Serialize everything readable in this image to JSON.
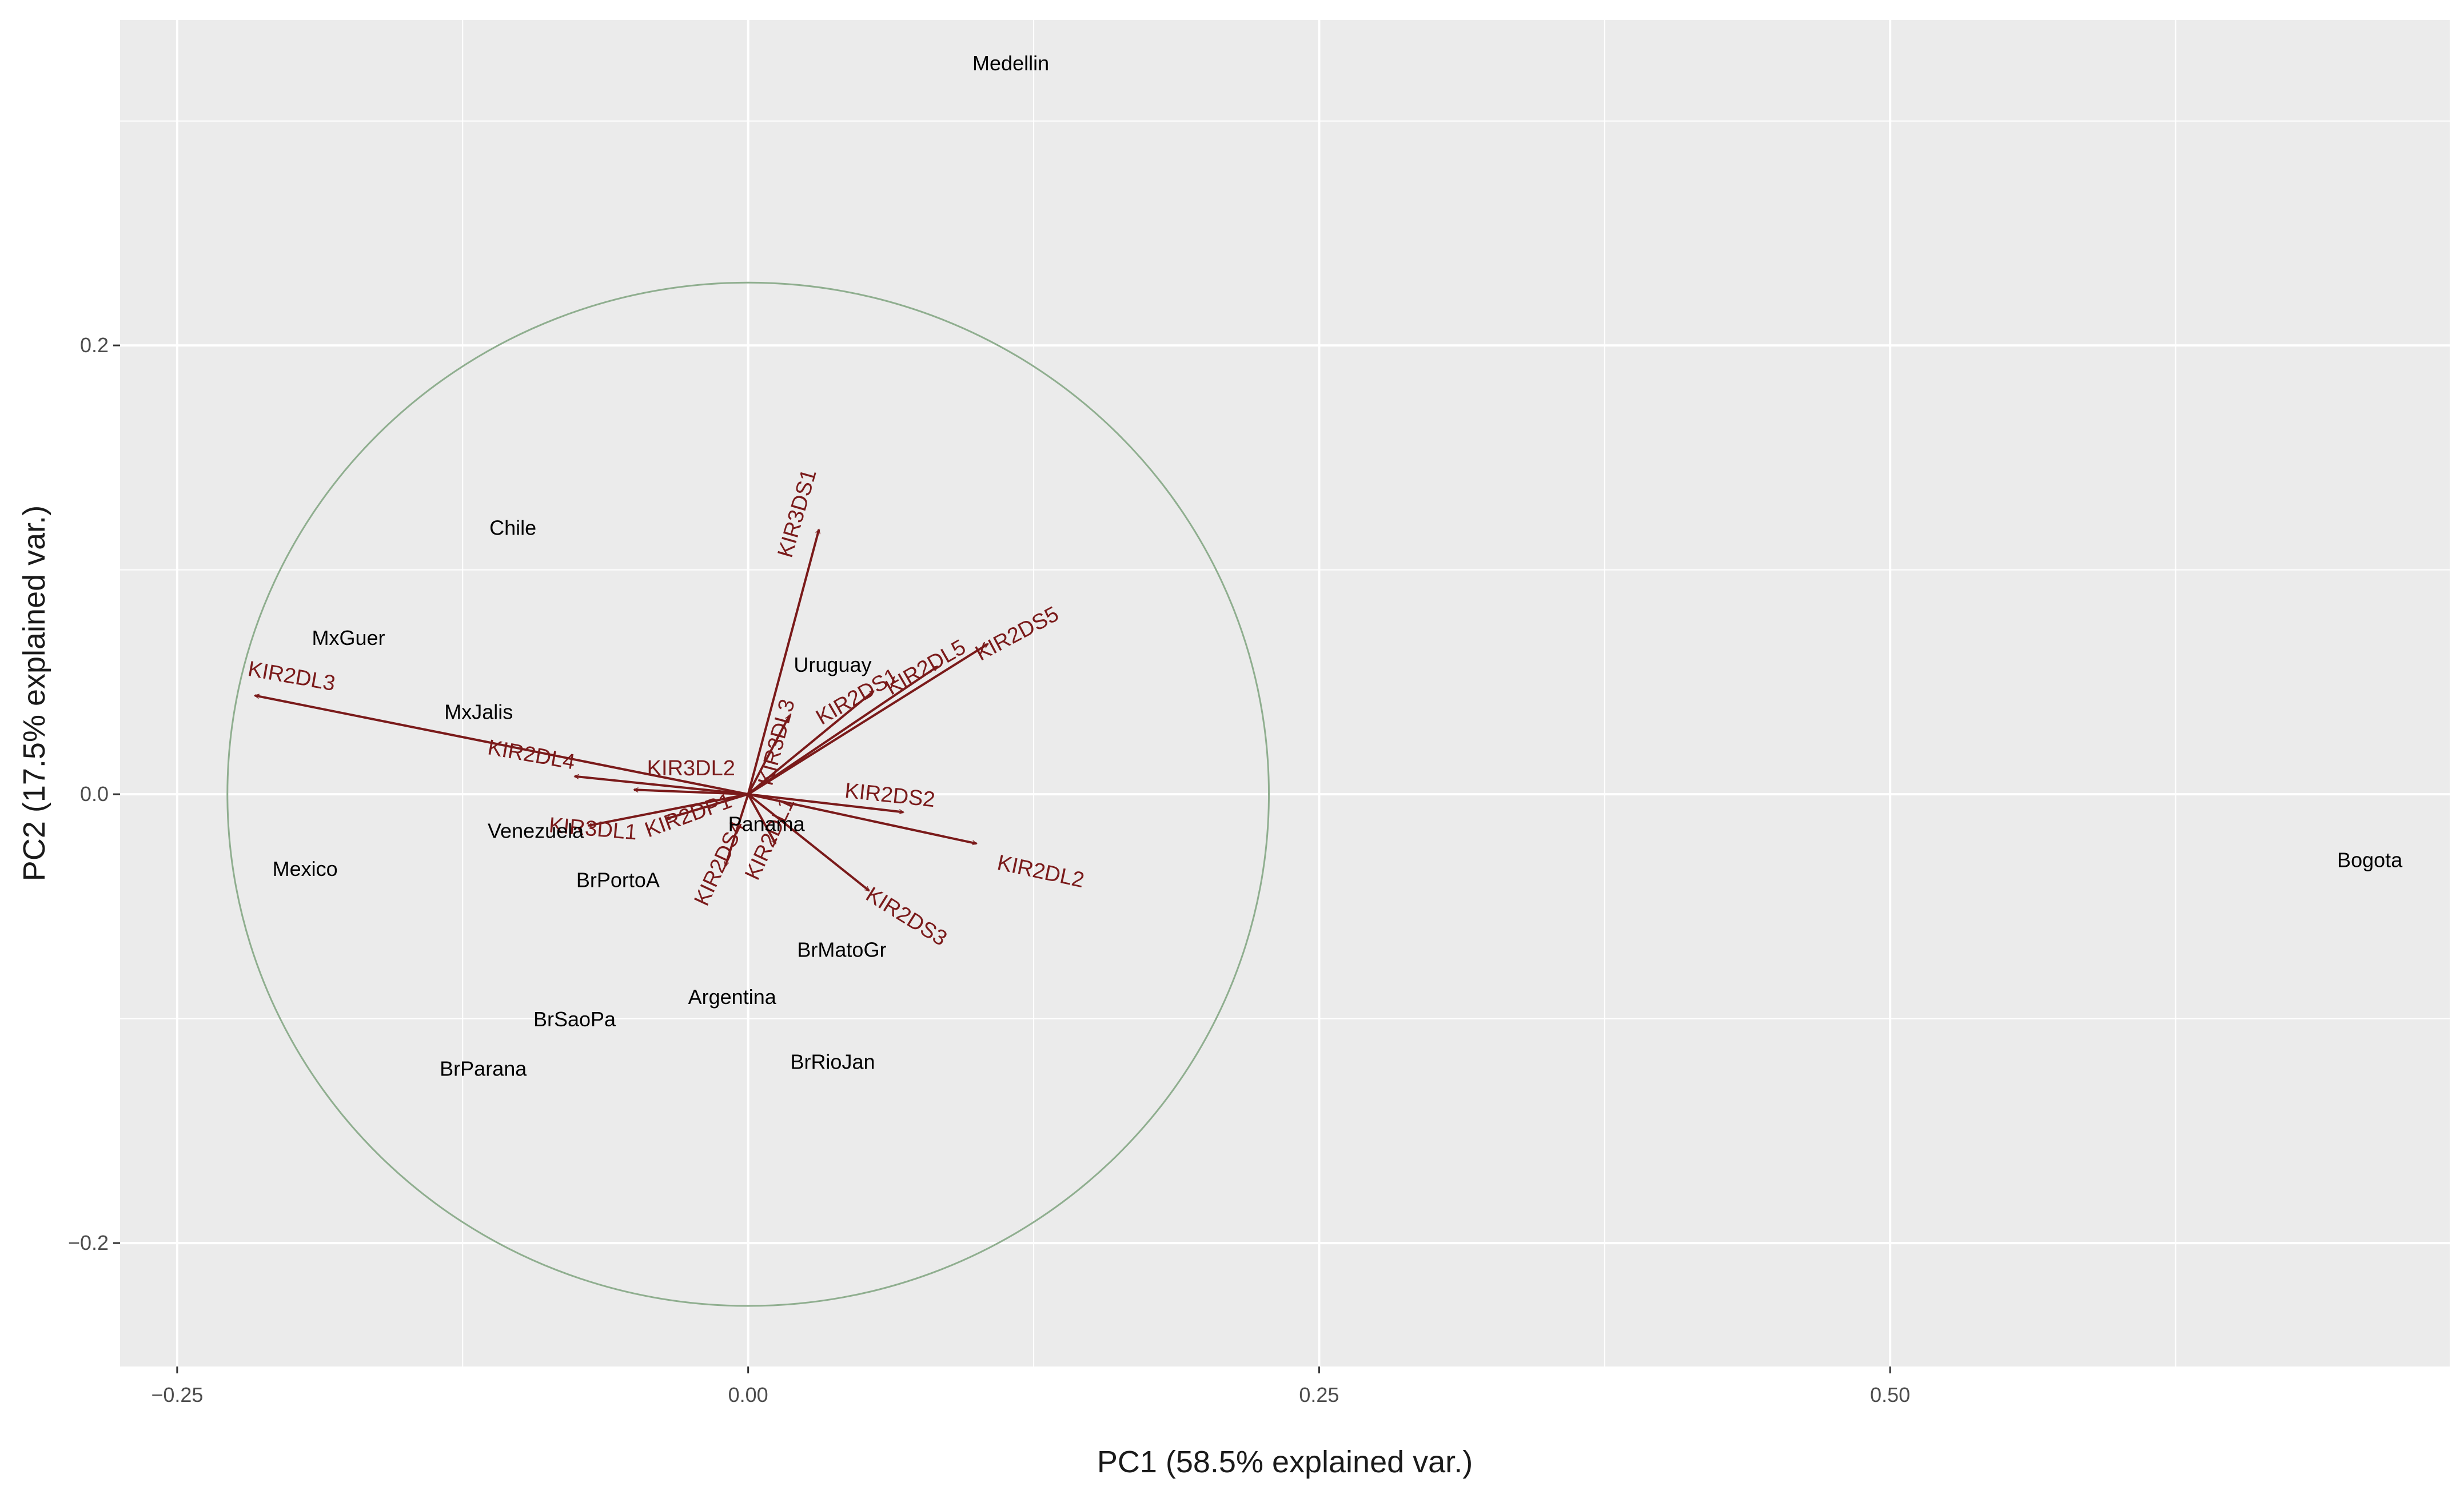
{
  "chart_data": {
    "type": "scatter",
    "title": "",
    "xlabel": "PC1 (58.5% explained var.)",
    "ylabel": "PC2 (17.5% explained var.)",
    "xlim": [
      -0.275,
      0.745
    ],
    "ylim": [
      -0.255,
      0.345
    ],
    "x_ticks": [
      -0.25,
      0.0,
      0.25,
      0.5
    ],
    "x_tick_labels": [
      "−0.25",
      "0.00",
      "0.25",
      "0.50"
    ],
    "y_ticks": [
      -0.2,
      0.0,
      0.2
    ],
    "y_tick_labels": [
      "−0.2",
      "0.0",
      "0.2"
    ],
    "grid": true,
    "colors": {
      "panel_background": "#ebebeb",
      "grid_line": "#ffffff",
      "loading_arrow": "#7a1a1a",
      "circle": "#8fae8f",
      "point_label": "#000000"
    },
    "correlation_circle": {
      "center": [
        0.0,
        0.0
      ],
      "radius": 0.228
    },
    "points": [
      {
        "label": "Medellin",
        "x": 0.115,
        "y": 0.325
      },
      {
        "label": "Chile",
        "x": -0.103,
        "y": 0.118
      },
      {
        "label": "MxGuer",
        "x": -0.175,
        "y": 0.069
      },
      {
        "label": "Uruguay",
        "x": 0.037,
        "y": 0.057
      },
      {
        "label": "MxJalis",
        "x": -0.118,
        "y": 0.036
      },
      {
        "label": "Venezuela",
        "x": -0.093,
        "y": -0.017
      },
      {
        "label": "Panama",
        "x": 0.008,
        "y": -0.014
      },
      {
        "label": "Mexico",
        "x": -0.194,
        "y": -0.034
      },
      {
        "label": "BrPortoA",
        "x": -0.057,
        "y": -0.039
      },
      {
        "label": "BrMatoGr",
        "x": 0.041,
        "y": -0.07
      },
      {
        "label": "Argentina",
        "x": -0.007,
        "y": -0.091
      },
      {
        "label": "BrSaoPa",
        "x": -0.076,
        "y": -0.101
      },
      {
        "label": "BrRioJan",
        "x": 0.037,
        "y": -0.12
      },
      {
        "label": "BrParana",
        "x": -0.116,
        "y": -0.123
      },
      {
        "label": "Bogota",
        "x": 0.71,
        "y": -0.03
      }
    ],
    "loadings": [
      {
        "label": "KIR2DL3",
        "x": -0.216,
        "y": 0.044,
        "lx": -0.2,
        "ly": 0.052,
        "angle": 10
      },
      {
        "label": "KIR3DS1",
        "x": 0.031,
        "y": 0.118,
        "lx": 0.022,
        "ly": 0.125,
        "angle": -74
      },
      {
        "label": "KIR2DS5",
        "x": 0.105,
        "y": 0.067,
        "lx": 0.118,
        "ly": 0.071,
        "angle": -28
      },
      {
        "label": "KIR2DL5",
        "x": 0.083,
        "y": 0.057,
        "lx": 0.078,
        "ly": 0.056,
        "angle": -30
      },
      {
        "label": "KIR2DS1",
        "x": 0.055,
        "y": 0.046,
        "lx": 0.048,
        "ly": 0.043,
        "angle": -30
      },
      {
        "label": "KIR3DL3",
        "x": 0.018,
        "y": 0.035,
        "lx": 0.013,
        "ly": 0.023,
        "angle": -75
      },
      {
        "label": "KIR2DL4",
        "x": -0.076,
        "y": 0.008,
        "lx": -0.095,
        "ly": 0.017,
        "angle": 10
      },
      {
        "label": "KIR3DL2",
        "x": -0.05,
        "y": 0.002,
        "lx": -0.025,
        "ly": 0.011,
        "angle": 0
      },
      {
        "label": "KIR2DS2",
        "x": 0.068,
        "y": -0.008,
        "lx": 0.062,
        "ly": -0.001,
        "angle": 6
      },
      {
        "label": "KIR2DL2",
        "x": 0.1,
        "y": -0.022,
        "lx": 0.128,
        "ly": -0.035,
        "angle": 12
      },
      {
        "label": "KIR2DS3",
        "x": 0.053,
        "y": -0.043,
        "lx": 0.069,
        "ly": -0.055,
        "angle": 32
      },
      {
        "label": "KIR3DL1",
        "x": -0.07,
        "y": -0.014,
        "lx": -0.068,
        "ly": -0.016,
        "angle": 5
      },
      {
        "label": "KIR2DP1",
        "x": -0.036,
        "y": -0.011,
        "lx": -0.026,
        "ly": -0.01,
        "angle": -20
      },
      {
        "label": "KIR2DL1",
        "x": 0.012,
        "y": -0.022,
        "lx": 0.01,
        "ly": -0.02,
        "angle": -65
      },
      {
        "label": "KIR2DS4",
        "x": -0.01,
        "y": -0.032,
        "lx": -0.012,
        "ly": -0.031,
        "angle": -65
      }
    ]
  }
}
